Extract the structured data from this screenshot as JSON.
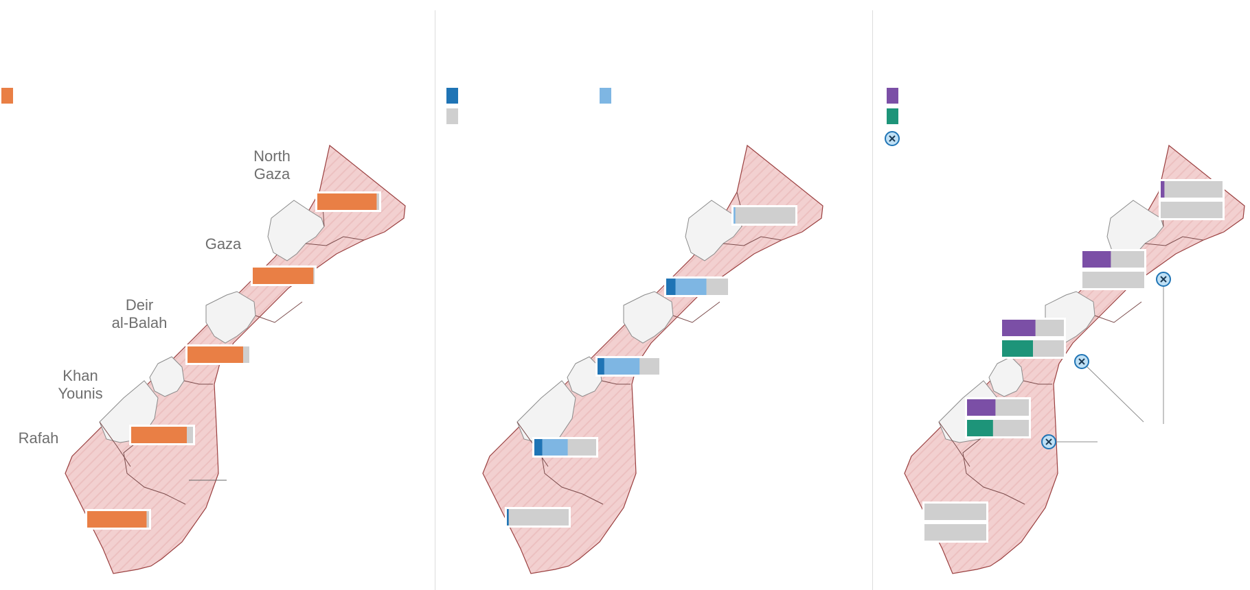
{
  "colors": {
    "idp_share": "#e97f45",
    "primary_dark": "#1f74b5",
    "primary_light": "#7eb6e3",
    "remaining": "#cfcfcf",
    "metric_purple": "#7b4fa6",
    "metric_teal": "#1d9479",
    "zone_fill": "#f2d0d0",
    "zone_stroke": "#9a3f3f",
    "safe_fill": "#f3f3f3"
  },
  "icons": {
    "legend_swatch": "square-swatch",
    "crossing": "crossing-x-icon"
  },
  "regions": [
    {
      "id": "north-gaza",
      "label_lines": [
        "North",
        "Gaza"
      ]
    },
    {
      "id": "gaza",
      "label_lines": [
        "Gaza"
      ]
    },
    {
      "id": "deir-al-balah",
      "label_lines": [
        "Deir",
        "al-Balah"
      ]
    },
    {
      "id": "khan-younis",
      "label_lines": [
        "Khan",
        "Younis"
      ]
    },
    {
      "id": "rafah",
      "label_lines": [
        "Rafah"
      ]
    }
  ],
  "panels": [
    {
      "id": "displacement",
      "legend": [
        {
          "swatch": "idp_share"
        }
      ],
      "bars": [
        {
          "region": "north-gaza",
          "rows": [
            [
              {
                "color": "idp_share",
                "value": 0.96
              }
            ]
          ]
        },
        {
          "region": "gaza",
          "rows": [
            [
              {
                "color": "idp_share",
                "value": 0.98
              }
            ]
          ]
        },
        {
          "region": "deir-al-balah",
          "rows": [
            [
              {
                "color": "idp_share",
                "value": 0.9
              }
            ]
          ]
        },
        {
          "region": "khan-younis",
          "rows": [
            [
              {
                "color": "idp_share",
                "value": 0.9
              }
            ]
          ]
        },
        {
          "region": "rafah",
          "rows": [
            [
              {
                "color": "idp_share",
                "value": 0.96
              }
            ]
          ]
        }
      ]
    },
    {
      "id": "facilities",
      "legend": [
        {
          "swatch": "primary_dark"
        },
        {
          "swatch": "primary_light"
        },
        {
          "swatch": "remaining"
        }
      ],
      "bars": [
        {
          "region": "north-gaza",
          "rows": [
            [
              {
                "color": "primary_dark",
                "value": 0.0
              },
              {
                "color": "primary_light",
                "value": 0.03
              }
            ]
          ]
        },
        {
          "region": "gaza",
          "rows": [
            [
              {
                "color": "primary_dark",
                "value": 0.15
              },
              {
                "color": "primary_light",
                "value": 0.5
              }
            ]
          ]
        },
        {
          "region": "deir-al-balah",
          "rows": [
            [
              {
                "color": "primary_dark",
                "value": 0.11
              },
              {
                "color": "primary_light",
                "value": 0.57
              }
            ]
          ]
        },
        {
          "region": "khan-younis",
          "rows": [
            [
              {
                "color": "primary_dark",
                "value": 0.13
              },
              {
                "color": "primary_light",
                "value": 0.41
              }
            ]
          ]
        },
        {
          "region": "rafah",
          "rows": [
            [
              {
                "color": "primary_dark",
                "value": 0.03
              },
              {
                "color": "primary_light",
                "value": 0.0
              }
            ]
          ]
        }
      ]
    },
    {
      "id": "services",
      "legend": [
        {
          "swatch": "metric_purple"
        },
        {
          "swatch": "metric_teal"
        },
        {
          "icon": "crossing"
        }
      ],
      "bars": [
        {
          "region": "north-gaza",
          "rows": [
            [
              {
                "color": "metric_purple",
                "value": 0.06
              }
            ],
            [
              {
                "color": "metric_teal",
                "value": 0.0
              }
            ]
          ]
        },
        {
          "region": "gaza",
          "rows": [
            [
              {
                "color": "metric_purple",
                "value": 0.46
              }
            ],
            [
              {
                "color": "metric_teal",
                "value": 0.0
              }
            ]
          ]
        },
        {
          "region": "deir-al-balah",
          "rows": [
            [
              {
                "color": "metric_purple",
                "value": 0.54
              }
            ],
            [
              {
                "color": "metric_teal",
                "value": 0.5
              }
            ]
          ]
        },
        {
          "region": "khan-younis",
          "rows": [
            [
              {
                "color": "metric_purple",
                "value": 0.46
              }
            ],
            [
              {
                "color": "metric_teal",
                "value": 0.42
              }
            ]
          ]
        },
        {
          "region": "rafah",
          "rows": [
            [
              {
                "color": "metric_purple",
                "value": 0.0
              }
            ],
            [
              {
                "color": "metric_teal",
                "value": 0.0
              }
            ]
          ]
        }
      ],
      "crossings": [
        "crossing-north",
        "crossing-middle",
        "crossing-south"
      ]
    }
  ]
}
